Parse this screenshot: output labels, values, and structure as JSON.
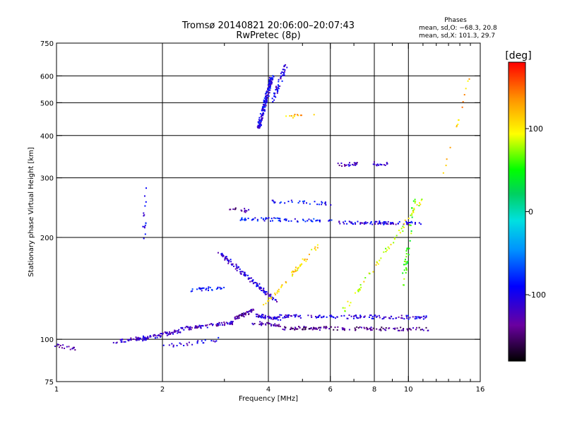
{
  "chart_data": {
    "type": "scatter",
    "title": "Tromsø 20140821 20:06:00–20:07:43",
    "subtitle": "RwPretec (8p)",
    "xlabel": "Frequency [MHz]",
    "ylabel": "Stationary phase Virtual Height [km]",
    "x_scale": "log",
    "y_scale": "log",
    "xlim": [
      1,
      16
    ],
    "ylim": [
      75,
      750
    ],
    "x_ticks": [
      1,
      2,
      4,
      6,
      8,
      10,
      16
    ],
    "x_minor_ticks": [
      3,
      5,
      7,
      9,
      11,
      12,
      13,
      14,
      15
    ],
    "y_ticks": [
      75,
      100,
      200,
      300,
      400,
      500,
      600,
      750
    ],
    "grid": true,
    "phase_box": {
      "title": "Phases",
      "line_o": "mean, sd,O: −68.3, 20.8",
      "line_x": "mean, sd,X: 101.3, 29.7"
    },
    "colorbar": {
      "label": "[deg]",
      "range": [
        -180,
        180
      ],
      "ticks": [
        100,
        0,
        -100
      ]
    },
    "traces": [
      {
        "x": [
          1.0,
          1.12
        ],
        "y": [
          96,
          94
        ],
        "phase": -120,
        "n": 18
      },
      {
        "x": [
          1.45,
          1.75
        ],
        "y": [
          98,
          101
        ],
        "phase": -115,
        "n": 35
      },
      {
        "x": [
          1.75,
          2.25
        ],
        "y": [
          100,
          106
        ],
        "phase": -115,
        "n": 70
      },
      {
        "x": [
          2.2,
          3.2
        ],
        "y": [
          107,
          112
        ],
        "phase": -120,
        "n": 80
      },
      {
        "x": [
          3.2,
          3.65
        ],
        "y": [
          115,
          122
        ],
        "phase": -135,
        "n": 45
      },
      {
        "x": [
          3.65,
          4.3
        ],
        "y": [
          118,
          115
        ],
        "phase": -120,
        "n": 50
      },
      {
        "x": [
          4.3,
          11.5
        ],
        "y": [
          117,
          116
        ],
        "phase": -110,
        "n": 130
      },
      {
        "x": [
          3.6,
          4.3
        ],
        "y": [
          112,
          110
        ],
        "phase": -135,
        "n": 30
      },
      {
        "x": [
          4.3,
          11.5
        ],
        "y": [
          108,
          107
        ],
        "phase": -140,
        "n": 130
      },
      {
        "x": [
          2.4,
          3.0
        ],
        "y": [
          140,
          142
        ],
        "phase": -85,
        "n": 30
      },
      {
        "x": [
          2.9,
          4.2
        ],
        "y": [
          180,
          130
        ],
        "phase": -110,
        "n": 120
      },
      {
        "x": [
          3.3,
          6.0
        ],
        "y": [
          227,
          224
        ],
        "phase": -90,
        "n": 70
      },
      {
        "x": [
          3.1,
          3.5
        ],
        "y": [
          242,
          240
        ],
        "phase": -140,
        "n": 15
      },
      {
        "x": [
          4.0,
          6.0
        ],
        "y": [
          256,
          252
        ],
        "phase": -90,
        "n": 30
      },
      {
        "x": [
          6.3,
          11.0
        ],
        "y": [
          222,
          220
        ],
        "phase": -105,
        "n": 80
      },
      {
        "x": [
          6.3,
          7.3
        ],
        "y": [
          328,
          330
        ],
        "phase": -120,
        "n": 20
      },
      {
        "x": [
          8.0,
          9.0
        ],
        "y": [
          330,
          328
        ],
        "phase": -110,
        "n": 15
      },
      {
        "x": [
          3.75,
          4.1
        ],
        "y": [
          420,
          600
        ],
        "phase": -100,
        "n": 160
      },
      {
        "x": [
          4.1,
          4.5
        ],
        "y": [
          500,
          650
        ],
        "phase": -105,
        "n": 50
      },
      {
        "x": [
          4.4,
          5.6
        ],
        "y": [
          455,
          460
        ],
        "phase": 120,
        "n": 12
      },
      {
        "x": [
          1.77,
          1.79
        ],
        "y": [
          195,
          285
        ],
        "phase": -95,
        "n": 15
      },
      {
        "x": [
          9.6,
          10.4
        ],
        "y": [
          140,
          260
        ],
        "phase": 60,
        "n": 40
      },
      {
        "x": [
          6.5,
          11.0
        ],
        "y": [
          120,
          260
        ],
        "phase": 90,
        "n": 60
      },
      {
        "x": [
          3.9,
          5.5
        ],
        "y": [
          125,
          190
        ],
        "phase": 110,
        "n": 50
      },
      {
        "x": [
          12.5,
          15.0
        ],
        "y": [
          300,
          600
        ],
        "phase": 120,
        "n": 15
      },
      {
        "x": [
          2.0,
          2.9
        ],
        "y": [
          95,
          100
        ],
        "phase": -110,
        "n": 25
      }
    ]
  }
}
